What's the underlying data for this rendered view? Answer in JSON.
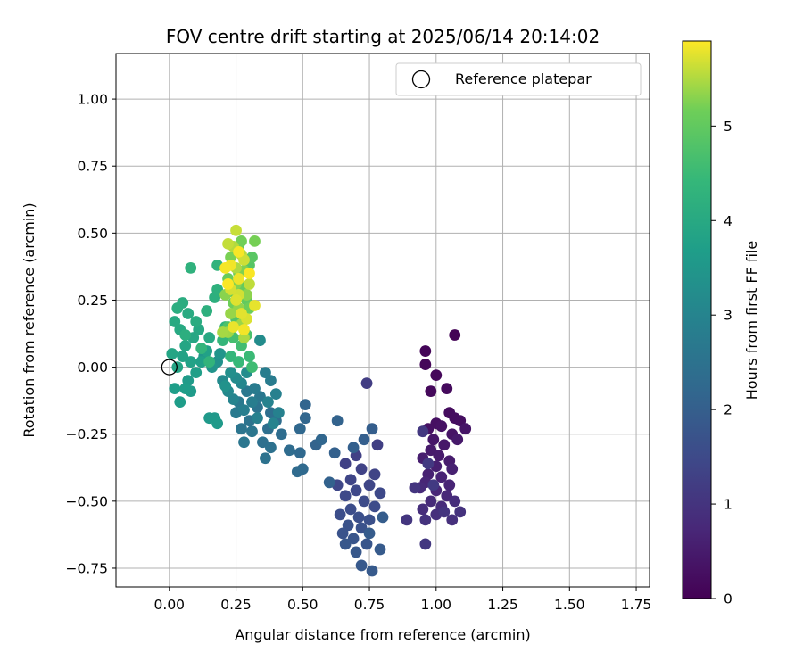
{
  "chart_data": {
    "type": "scatter",
    "title": "FOV centre drift starting at 2025/06/14 20:14:02",
    "xlabel": "Angular distance from reference (arcmin)",
    "ylabel": "Rotation from reference (arcmin)",
    "xlim": [
      -0.2,
      1.8
    ],
    "ylim": [
      -0.82,
      1.17
    ],
    "xticks": [
      0.0,
      0.25,
      0.5,
      0.75,
      1.0,
      1.25,
      1.5,
      1.75
    ],
    "xtick_labels": [
      "0.00",
      "0.25",
      "0.50",
      "0.75",
      "1.00",
      "1.25",
      "1.50",
      "1.75"
    ],
    "yticks": [
      -0.75,
      -0.5,
      -0.25,
      0.0,
      0.25,
      0.5,
      0.75,
      1.0
    ],
    "ytick_labels": [
      "−0.75",
      "−0.50",
      "−0.25",
      "0.00",
      "0.25",
      "0.50",
      "0.75",
      "1.00"
    ],
    "grid": true,
    "legend": {
      "placement": "top-right",
      "entries": [
        "Reference platepar"
      ]
    },
    "reference_point": {
      "x": 0.0,
      "y": 0.0,
      "label": "Reference platepar"
    },
    "colorbar": {
      "label": "Hours from first FF file",
      "colormap": "viridis",
      "range": [
        0,
        5.9
      ],
      "ticks": [
        0,
        1,
        2,
        3,
        4,
        5
      ],
      "tick_labels": [
        "0",
        "1",
        "2",
        "3",
        "4",
        "5"
      ]
    },
    "points": [
      [
        1.07,
        0.12,
        0.05
      ],
      [
        0.96,
        0.06,
        0.08
      ],
      [
        0.96,
        0.01,
        0.1
      ],
      [
        1.0,
        -0.03,
        0.12
      ],
      [
        0.98,
        -0.09,
        0.15
      ],
      [
        1.04,
        -0.08,
        0.18
      ],
      [
        1.05,
        -0.17,
        0.2
      ],
      [
        1.07,
        -0.19,
        0.22
      ],
      [
        1.09,
        -0.2,
        0.25
      ],
      [
        1.0,
        -0.21,
        0.28
      ],
      [
        0.97,
        -0.23,
        0.3
      ],
      [
        1.02,
        -0.22,
        0.32
      ],
      [
        1.06,
        -0.25,
        0.35
      ],
      [
        1.11,
        -0.23,
        0.38
      ],
      [
        0.99,
        -0.27,
        0.4
      ],
      [
        1.03,
        -0.29,
        0.42
      ],
      [
        1.08,
        -0.27,
        0.45
      ],
      [
        0.98,
        -0.31,
        0.48
      ],
      [
        1.01,
        -0.33,
        0.5
      ],
      [
        1.05,
        -0.35,
        0.52
      ],
      [
        0.95,
        -0.34,
        0.55
      ],
      [
        1.0,
        -0.37,
        0.58
      ],
      [
        1.06,
        -0.38,
        0.6
      ],
      [
        0.97,
        -0.4,
        0.62
      ],
      [
        1.02,
        -0.41,
        0.65
      ],
      [
        1.05,
        -0.44,
        0.68
      ],
      [
        0.96,
        -0.43,
        0.7
      ],
      [
        1.0,
        -0.46,
        0.72
      ],
      [
        1.04,
        -0.48,
        0.75
      ],
      [
        0.94,
        -0.45,
        0.78
      ],
      [
        0.98,
        -0.5,
        0.8
      ],
      [
        1.02,
        -0.52,
        0.82
      ],
      [
        1.07,
        -0.5,
        0.85
      ],
      [
        0.95,
        -0.53,
        0.88
      ],
      [
        1.0,
        -0.55,
        0.9
      ],
      [
        1.06,
        -0.57,
        0.92
      ],
      [
        1.09,
        -0.54,
        0.95
      ],
      [
        0.96,
        -0.57,
        0.98
      ],
      [
        1.03,
        -0.54,
        1.0
      ],
      [
        0.92,
        -0.45,
        1.02
      ],
      [
        0.89,
        -0.57,
        1.05
      ],
      [
        0.96,
        -0.66,
        1.08
      ],
      [
        0.95,
        -0.24,
        1.1
      ],
      [
        0.97,
        -0.36,
        1.12
      ],
      [
        0.99,
        -0.44,
        1.15
      ],
      [
        0.74,
        -0.06,
        1.2
      ],
      [
        0.78,
        -0.29,
        1.25
      ],
      [
        0.7,
        -0.33,
        1.28
      ],
      [
        0.66,
        -0.36,
        1.3
      ],
      [
        0.72,
        -0.38,
        1.33
      ],
      [
        0.77,
        -0.4,
        1.36
      ],
      [
        0.68,
        -0.42,
        1.38
      ],
      [
        0.75,
        -0.44,
        1.4
      ],
      [
        0.63,
        -0.44,
        1.43
      ],
      [
        0.7,
        -0.46,
        1.46
      ],
      [
        0.79,
        -0.47,
        1.48
      ],
      [
        0.66,
        -0.48,
        1.5
      ],
      [
        0.73,
        -0.5,
        1.52
      ],
      [
        0.77,
        -0.52,
        1.55
      ],
      [
        0.68,
        -0.53,
        1.58
      ],
      [
        0.64,
        -0.55,
        1.6
      ],
      [
        0.71,
        -0.56,
        1.62
      ],
      [
        0.75,
        -0.57,
        1.65
      ],
      [
        0.67,
        -0.59,
        1.68
      ],
      [
        0.72,
        -0.6,
        1.7
      ],
      [
        0.65,
        -0.62,
        1.72
      ],
      [
        0.69,
        -0.64,
        1.75
      ],
      [
        0.74,
        -0.66,
        1.78
      ],
      [
        0.66,
        -0.66,
        1.8
      ],
      [
        0.7,
        -0.69,
        1.82
      ],
      [
        0.72,
        -0.74,
        1.85
      ],
      [
        0.76,
        -0.76,
        1.88
      ],
      [
        0.79,
        -0.68,
        1.9
      ],
      [
        0.75,
        -0.62,
        1.92
      ],
      [
        0.8,
        -0.56,
        1.95
      ],
      [
        0.76,
        -0.23,
        1.98
      ],
      [
        0.73,
        -0.27,
        2.0
      ],
      [
        0.69,
        -0.3,
        2.02
      ],
      [
        0.62,
        -0.32,
        2.05
      ],
      [
        0.6,
        -0.43,
        2.08
      ],
      [
        0.63,
        -0.2,
        2.1
      ],
      [
        0.55,
        -0.29,
        2.12
      ],
      [
        0.51,
        -0.14,
        2.15
      ],
      [
        0.51,
        -0.19,
        2.18
      ],
      [
        0.57,
        -0.27,
        2.2
      ],
      [
        0.49,
        -0.23,
        2.22
      ],
      [
        0.49,
        -0.32,
        2.25
      ],
      [
        0.5,
        -0.38,
        2.28
      ],
      [
        0.48,
        -0.39,
        2.3
      ],
      [
        0.45,
        -0.31,
        2.32
      ],
      [
        0.42,
        -0.25,
        2.35
      ],
      [
        0.4,
        -0.2,
        2.38
      ],
      [
        0.38,
        -0.17,
        2.4
      ],
      [
        0.37,
        -0.23,
        2.42
      ],
      [
        0.35,
        -0.28,
        2.45
      ],
      [
        0.38,
        -0.3,
        2.48
      ],
      [
        0.36,
        -0.34,
        2.5
      ],
      [
        0.33,
        -0.15,
        2.52
      ],
      [
        0.3,
        -0.2,
        2.55
      ],
      [
        0.27,
        -0.23,
        2.58
      ],
      [
        0.28,
        -0.28,
        2.6
      ],
      [
        0.31,
        -0.24,
        2.62
      ],
      [
        0.34,
        -0.11,
        2.65
      ],
      [
        0.29,
        -0.09,
        2.68
      ],
      [
        0.26,
        -0.13,
        2.7
      ],
      [
        0.25,
        -0.17,
        2.72
      ],
      [
        0.32,
        -0.08,
        2.75
      ],
      [
        0.38,
        -0.05,
        2.78
      ],
      [
        0.36,
        -0.02,
        2.8
      ],
      [
        0.31,
        -0.13,
        2.82
      ],
      [
        0.28,
        -0.16,
        2.85
      ],
      [
        0.33,
        -0.19,
        2.88
      ],
      [
        0.4,
        -0.1,
        2.9
      ],
      [
        0.41,
        -0.17,
        2.92
      ],
      [
        0.37,
        -0.13,
        2.95
      ],
      [
        0.39,
        -0.21,
        2.98
      ],
      [
        0.24,
        -0.12,
        3.0
      ],
      [
        0.27,
        -0.06,
        3.05
      ],
      [
        0.22,
        -0.09,
        3.1
      ],
      [
        0.2,
        -0.05,
        3.15
      ],
      [
        0.25,
        -0.04,
        3.2
      ],
      [
        0.34,
        0.1,
        3.22
      ],
      [
        0.29,
        -0.02,
        3.25
      ],
      [
        0.23,
        -0.02,
        3.3
      ],
      [
        0.18,
        0.02,
        3.35
      ],
      [
        0.21,
        -0.07,
        3.38
      ],
      [
        0.16,
        0.0,
        3.42
      ],
      [
        0.19,
        0.05,
        3.45
      ],
      [
        0.13,
        0.04,
        3.5
      ],
      [
        0.17,
        -0.19,
        3.52
      ],
      [
        0.15,
        -0.19,
        3.55
      ],
      [
        0.18,
        -0.21,
        3.58
      ],
      [
        0.08,
        -0.09,
        3.6
      ],
      [
        0.07,
        -0.05,
        3.62
      ],
      [
        0.04,
        -0.13,
        3.65
      ],
      [
        0.02,
        -0.08,
        3.68
      ],
      [
        0.06,
        -0.08,
        3.7
      ],
      [
        0.1,
        -0.02,
        3.72
      ],
      [
        0.12,
        0.02,
        3.75
      ],
      [
        0.14,
        0.06,
        3.78
      ],
      [
        0.08,
        0.02,
        3.8
      ],
      [
        0.05,
        0.04,
        3.82
      ],
      [
        0.03,
        0.0,
        3.85
      ],
      [
        0.01,
        0.05,
        3.88
      ],
      [
        0.06,
        0.08,
        3.9
      ],
      [
        0.09,
        0.11,
        3.92
      ],
      [
        0.11,
        0.14,
        3.95
      ],
      [
        0.15,
        0.11,
        3.98
      ],
      [
        0.04,
        0.14,
        4.0
      ],
      [
        0.02,
        0.17,
        4.02
      ],
      [
        0.07,
        0.2,
        4.05
      ],
      [
        0.1,
        0.17,
        4.08
      ],
      [
        0.05,
        0.24,
        4.1
      ],
      [
        0.03,
        0.22,
        4.12
      ],
      [
        0.06,
        0.12,
        4.15
      ],
      [
        0.14,
        0.21,
        4.18
      ],
      [
        0.17,
        0.26,
        4.2
      ],
      [
        0.18,
        0.29,
        4.22
      ],
      [
        0.08,
        0.37,
        4.25
      ],
      [
        0.18,
        0.38,
        4.28
      ],
      [
        0.21,
        0.15,
        4.3
      ],
      [
        0.15,
        0.02,
        4.32
      ],
      [
        0.12,
        0.07,
        4.35
      ],
      [
        0.2,
        0.1,
        4.38
      ],
      [
        0.23,
        0.04,
        4.4
      ],
      [
        0.26,
        0.02,
        4.45
      ],
      [
        0.3,
        0.04,
        4.5
      ],
      [
        0.31,
        0.0,
        4.55
      ],
      [
        0.27,
        0.08,
        4.6
      ],
      [
        0.24,
        0.11,
        4.65
      ],
      [
        0.29,
        0.12,
        4.7
      ],
      [
        0.22,
        0.15,
        4.75
      ],
      [
        0.25,
        0.18,
        4.8
      ],
      [
        0.3,
        0.38,
        4.85
      ],
      [
        0.31,
        0.41,
        4.9
      ],
      [
        0.26,
        0.44,
        4.95
      ],
      [
        0.29,
        0.25,
        5.0
      ],
      [
        0.24,
        0.28,
        5.02
      ],
      [
        0.28,
        0.3,
        5.05
      ],
      [
        0.22,
        0.33,
        5.08
      ],
      [
        0.26,
        0.35,
        5.1
      ],
      [
        0.3,
        0.22,
        5.12
      ],
      [
        0.24,
        0.24,
        5.15
      ],
      [
        0.27,
        0.47,
        5.18
      ],
      [
        0.32,
        0.47,
        5.2
      ],
      [
        0.23,
        0.41,
        5.22
      ],
      [
        0.28,
        0.36,
        5.25
      ],
      [
        0.25,
        0.31,
        5.28
      ],
      [
        0.21,
        0.27,
        5.3
      ],
      [
        0.29,
        0.27,
        5.32
      ],
      [
        0.26,
        0.22,
        5.35
      ],
      [
        0.23,
        0.2,
        5.38
      ],
      [
        0.27,
        0.16,
        5.4
      ],
      [
        0.22,
        0.13,
        5.42
      ],
      [
        0.2,
        0.13,
        5.45
      ],
      [
        0.28,
        0.11,
        5.48
      ],
      [
        0.25,
        0.37,
        5.5
      ],
      [
        0.24,
        0.45,
        5.52
      ],
      [
        0.27,
        0.42,
        5.55
      ],
      [
        0.3,
        0.31,
        5.58
      ],
      [
        0.22,
        0.46,
        5.6
      ],
      [
        0.25,
        0.51,
        5.62
      ],
      [
        0.28,
        0.4,
        5.65
      ],
      [
        0.26,
        0.27,
        5.68
      ],
      [
        0.23,
        0.29,
        5.7
      ],
      [
        0.29,
        0.18,
        5.72
      ],
      [
        0.25,
        0.25,
        5.74
      ],
      [
        0.27,
        0.2,
        5.76
      ],
      [
        0.32,
        0.23,
        5.78
      ],
      [
        0.24,
        0.15,
        5.8
      ],
      [
        0.26,
        0.33,
        5.82
      ],
      [
        0.23,
        0.38,
        5.84
      ],
      [
        0.28,
        0.14,
        5.85
      ],
      [
        0.21,
        0.37,
        5.86
      ],
      [
        0.26,
        0.43,
        5.87
      ],
      [
        0.3,
        0.35,
        5.88
      ],
      [
        0.22,
        0.31,
        5.89
      ]
    ]
  }
}
